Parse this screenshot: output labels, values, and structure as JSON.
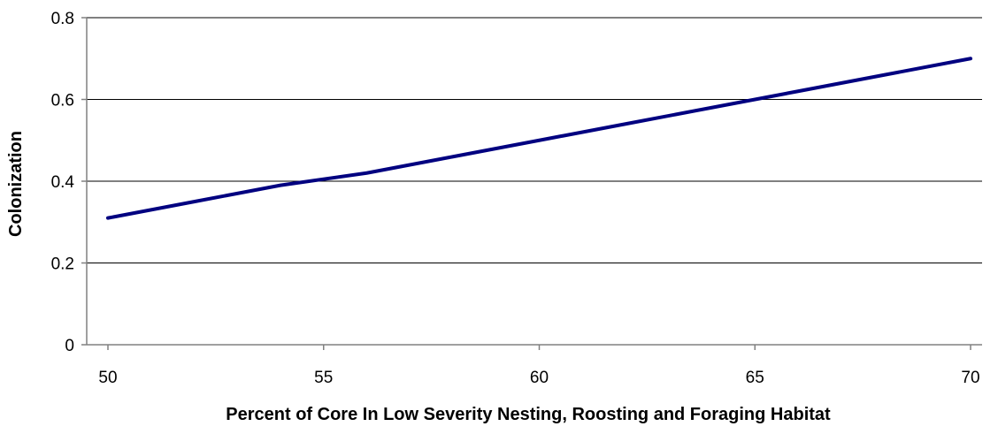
{
  "chart_data": {
    "type": "line",
    "title": "",
    "xlabel": "Percent of Core In Low Severity Nesting, Roosting and Foraging Habitat",
    "ylabel": "Colonization",
    "xlim": [
      50,
      70
    ],
    "ylim": [
      0,
      0.8
    ],
    "x_ticks": [
      "50",
      "55",
      "60",
      "65",
      "70"
    ],
    "y_ticks": [
      "0",
      "0.2",
      "0.4",
      "0.6",
      "0.8"
    ],
    "grid": "horizontal",
    "legend": "none",
    "series": [
      {
        "color": "#000080",
        "x": [
          50,
          52,
          54,
          56,
          58,
          60,
          62,
          64,
          66,
          68,
          70
        ],
        "y": [
          0.31,
          0.35,
          0.39,
          0.42,
          0.46,
          0.5,
          0.54,
          0.58,
          0.62,
          0.66,
          0.7
        ]
      }
    ]
  },
  "colors": {
    "axis": "#808080",
    "grid": "#000000",
    "line": "#000080"
  }
}
